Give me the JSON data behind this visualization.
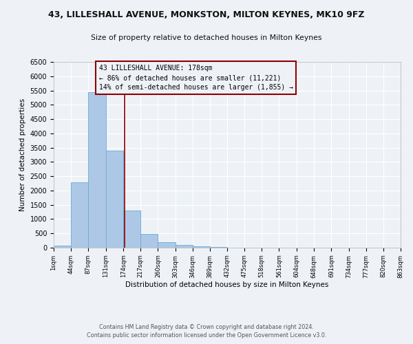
{
  "title": "43, LILLESHALL AVENUE, MONKSTON, MILTON KEYNES, MK10 9FZ",
  "subtitle": "Size of property relative to detached houses in Milton Keynes",
  "xlabel": "Distribution of detached houses by size in Milton Keynes",
  "ylabel": "Number of detached properties",
  "bin_edges": [
    1,
    44,
    87,
    131,
    174,
    217,
    260,
    303,
    346,
    389,
    432,
    475,
    518,
    561,
    604,
    648,
    691,
    734,
    777,
    820,
    863
  ],
  "bar_heights": [
    75,
    2280,
    5430,
    3390,
    1310,
    480,
    200,
    90,
    45,
    15,
    5,
    2,
    0,
    0,
    0,
    0,
    0,
    0,
    0,
    0
  ],
  "bar_color": "#adc8e6",
  "bar_edgecolor": "#6aaad4",
  "property_size": 178,
  "vline_color": "#8b0000",
  "annotation_text": "43 LILLESHALL AVENUE: 178sqm\n← 86% of detached houses are smaller (11,221)\n14% of semi-detached houses are larger (1,855) →",
  "annotation_box_edgecolor": "#8b0000",
  "ylim": [
    0,
    6500
  ],
  "yticks": [
    0,
    500,
    1000,
    1500,
    2000,
    2500,
    3000,
    3500,
    4000,
    4500,
    5000,
    5500,
    6000,
    6500
  ],
  "background_color": "#eef2f7",
  "grid_color": "#ffffff",
  "footer_line1": "Contains HM Land Registry data © Crown copyright and database right 2024.",
  "footer_line2": "Contains public sector information licensed under the Open Government Licence v3.0."
}
